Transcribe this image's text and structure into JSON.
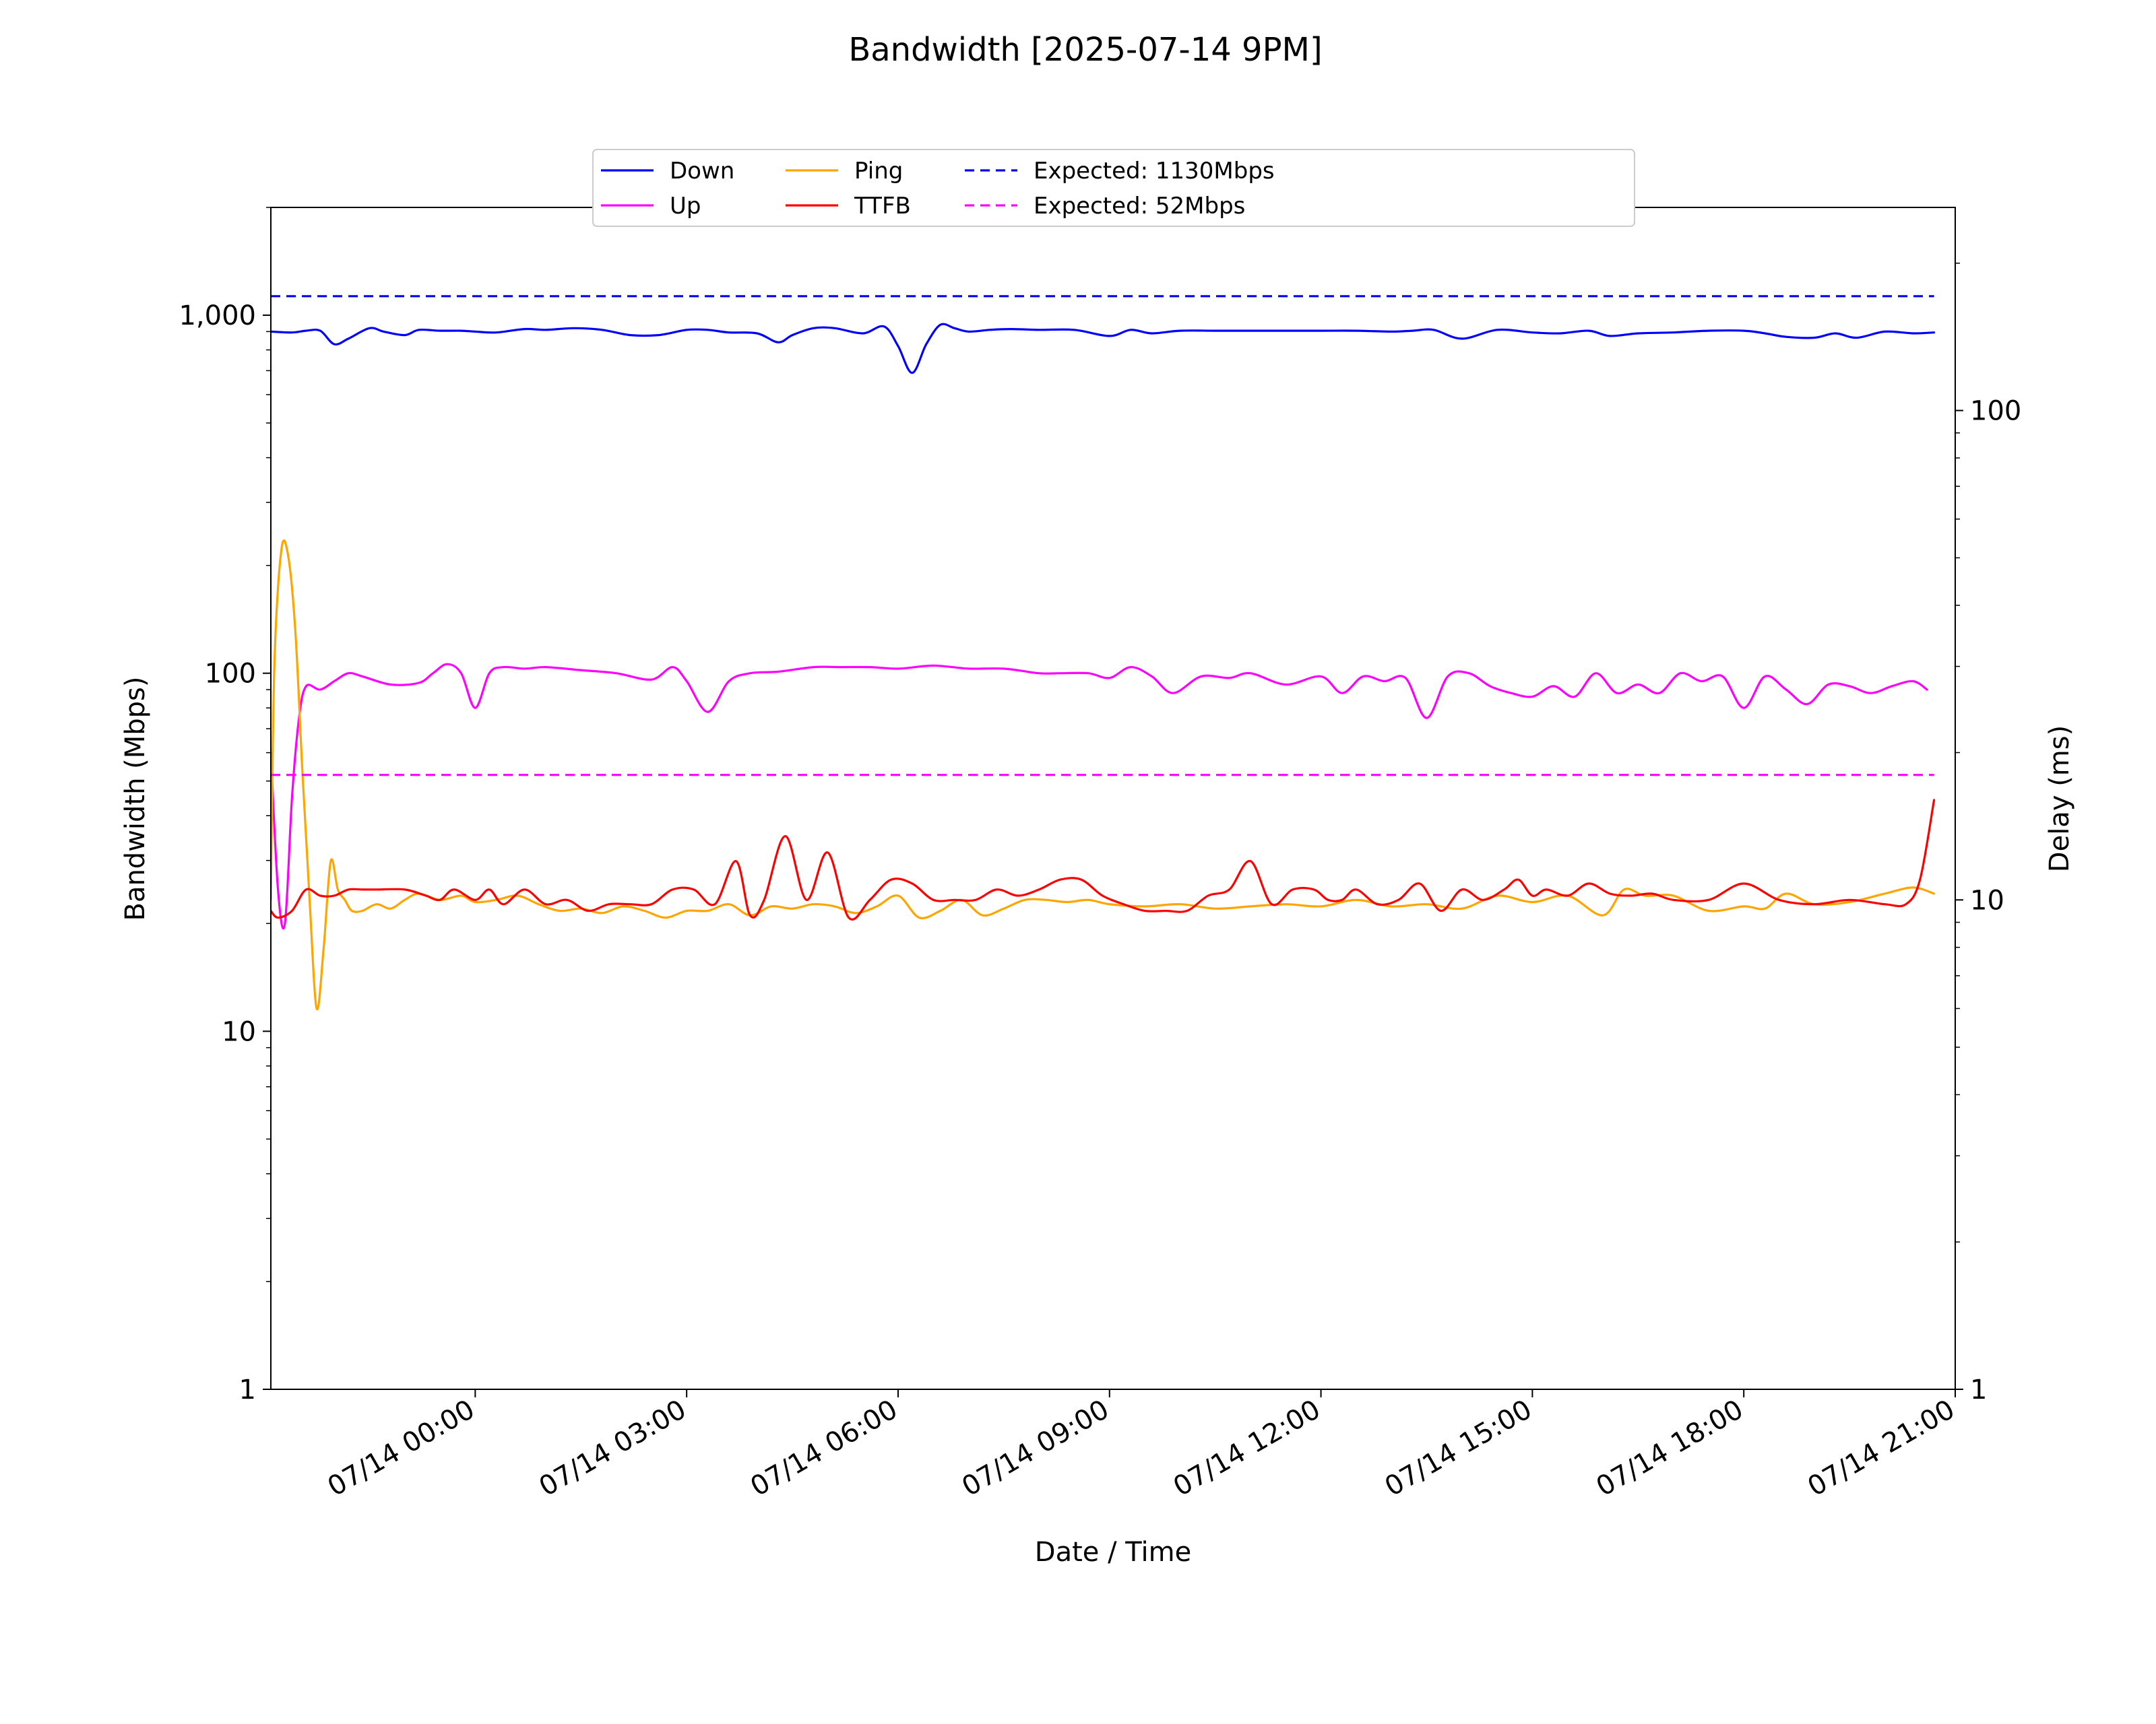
{
  "chart_data": {
    "type": "line",
    "title": "Bandwidth [2025-07-14 9PM]",
    "xlabel": "Date / Time",
    "ylabel": "Bandwidth (Mbps)",
    "y2label": "Delay (ms)",
    "x_unit": "hours relative to 07/14 00:00",
    "xlim": [
      -2.9,
      21.0
    ],
    "x_ticks": [
      {
        "x": 0,
        "label": "07/14 00:00"
      },
      {
        "x": 3,
        "label": "07/14 03:00"
      },
      {
        "x": 6,
        "label": "07/14 06:00"
      },
      {
        "x": 9,
        "label": "07/14 09:00"
      },
      {
        "x": 12,
        "label": "07/14 12:00"
      },
      {
        "x": 15,
        "label": "07/14 15:00"
      },
      {
        "x": 18,
        "label": "07/14 18:00"
      },
      {
        "x": 21,
        "label": "07/14 21:00"
      }
    ],
    "y_scale": "log",
    "ylim": [
      1,
      2000
    ],
    "y_ticks": [
      {
        "y": 1,
        "label": "1"
      },
      {
        "y": 10,
        "label": "10"
      },
      {
        "y": 100,
        "label": "100"
      },
      {
        "y": 1000,
        "label": "1,000"
      }
    ],
    "y2_scale": "log",
    "y2_ylim": [
      1,
      260
    ],
    "y2_ticks": [
      {
        "y": 1,
        "label": "1"
      },
      {
        "y": 10,
        "label": "10"
      },
      {
        "y": 100,
        "label": "100"
      }
    ],
    "grid": false,
    "legend": {
      "placement": "top-center",
      "columns": 4,
      "order": [
        "Down",
        "Up",
        "Ping",
        "TTFB",
        "Expected: 1130Mbps",
        "Expected: 52Mbps"
      ]
    },
    "series": [
      {
        "name": "Down",
        "axis": "left",
        "color": "#0000ff",
        "style": "solid",
        "x": [
          -2.9,
          -2.6,
          -2.4,
          -2.2,
          -2.0,
          -1.8,
          -1.5,
          -1.3,
          -1.0,
          -0.8,
          -0.5,
          -0.2,
          0.0,
          0.3,
          0.7,
          1.0,
          1.4,
          1.8,
          2.2,
          2.6,
          3.0,
          3.3,
          3.6,
          4.0,
          4.3,
          4.5,
          4.8,
          5.1,
          5.5,
          5.8,
          6.0,
          6.2,
          6.4,
          6.6,
          6.8,
          7.0,
          7.3,
          7.6,
          8.0,
          8.5,
          9.0,
          9.3,
          9.6,
          10.0,
          10.5,
          11.0,
          11.5,
          12.0,
          12.5,
          13.0,
          13.3,
          13.6,
          14.0,
          14.5,
          15.0,
          15.4,
          15.8,
          16.1,
          16.5,
          17.0,
          17.5,
          18.0,
          18.3,
          18.6,
          19.0,
          19.3,
          19.6,
          20.0,
          20.4,
          20.7
        ],
        "values": [
          900,
          895,
          905,
          905,
          830,
          860,
          920,
          900,
          880,
          910,
          905,
          905,
          900,
          895,
          915,
          910,
          920,
          910,
          880,
          880,
          910,
          910,
          895,
          890,
          840,
          880,
          920,
          920,
          890,
          930,
          820,
          690,
          830,
          940,
          920,
          900,
          910,
          915,
          910,
          910,
          875,
          910,
          890,
          905,
          905,
          905,
          905,
          905,
          905,
          900,
          905,
          910,
          860,
          910,
          895,
          890,
          905,
          875,
          890,
          895,
          905,
          905,
          890,
          870,
          865,
          890,
          865,
          900,
          890,
          895
        ]
      },
      {
        "name": "Up",
        "axis": "left",
        "color": "#ff00ff",
        "style": "solid",
        "x": [
          -2.9,
          -2.8,
          -2.7,
          -2.6,
          -2.5,
          -2.4,
          -2.2,
          -2.0,
          -1.8,
          -1.6,
          -1.2,
          -0.8,
          -0.6,
          -0.4,
          -0.2,
          0.0,
          0.2,
          0.4,
          0.7,
          1.0,
          1.5,
          2.0,
          2.5,
          2.8,
          3.0,
          3.3,
          3.6,
          3.9,
          4.3,
          4.8,
          5.2,
          5.6,
          6.0,
          6.5,
          7.0,
          7.5,
          8.0,
          8.3,
          8.7,
          9.0,
          9.3,
          9.6,
          9.9,
          10.3,
          10.7,
          11.0,
          11.5,
          12.0,
          12.3,
          12.6,
          12.9,
          13.2,
          13.5,
          13.8,
          14.1,
          14.4,
          14.7,
          15.0,
          15.3,
          15.6,
          15.9,
          16.2,
          16.5,
          16.8,
          17.1,
          17.4,
          17.7,
          18.0,
          18.3,
          18.6,
          18.9,
          19.2,
          19.5,
          19.8,
          20.1,
          20.4,
          20.6
        ],
        "values": [
          60,
          25,
          20,
          45,
          75,
          92,
          90,
          95,
          100,
          98,
          93,
          94,
          100,
          106,
          100,
          80,
          100,
          104,
          103,
          104,
          102,
          100,
          96,
          104,
          95,
          78,
          95,
          100,
          101,
          104,
          104,
          104,
          103,
          105,
          103,
          103,
          100,
          100,
          100,
          97,
          104,
          98,
          88,
          98,
          97,
          100,
          93,
          98,
          88,
          98,
          95,
          97,
          75,
          98,
          100,
          92,
          88,
          86,
          92,
          86,
          100,
          88,
          93,
          88,
          100,
          95,
          98,
          80,
          98,
          90,
          82,
          93,
          92,
          88,
          92,
          95,
          90
        ]
      },
      {
        "name": "Ping",
        "axis": "right",
        "color": "#ffa500",
        "style": "solid",
        "x": [
          -2.9,
          -2.85,
          -2.75,
          -2.65,
          -2.55,
          -2.45,
          -2.35,
          -2.25,
          -2.15,
          -2.05,
          -1.95,
          -1.85,
          -1.75,
          -1.6,
          -1.4,
          -1.2,
          -1.0,
          -0.8,
          -0.5,
          -0.2,
          0.0,
          0.3,
          0.6,
          0.9,
          1.2,
          1.5,
          1.8,
          2.1,
          2.4,
          2.7,
          3.0,
          3.3,
          3.6,
          3.9,
          4.2,
          4.5,
          4.8,
          5.1,
          5.4,
          5.7,
          6.0,
          6.3,
          6.6,
          6.9,
          7.2,
          7.5,
          7.8,
          8.1,
          8.4,
          8.7,
          9.0,
          9.5,
          10.0,
          10.5,
          11.0,
          11.5,
          12.0,
          12.5,
          13.0,
          13.5,
          14.0,
          14.5,
          15.0,
          15.5,
          16.0,
          16.3,
          16.6,
          17.0,
          17.5,
          18.0,
          18.3,
          18.6,
          19.0,
          19.5,
          20.0,
          20.4,
          20.7
        ],
        "values": [
          10,
          30,
          52,
          50,
          35,
          18,
          10,
          6,
          8,
          12,
          10.5,
          10,
          9.5,
          9.5,
          9.8,
          9.6,
          10,
          10.3,
          10,
          10.2,
          9.9,
          10,
          10.2,
          9.8,
          9.5,
          9.6,
          9.4,
          9.7,
          9.5,
          9.2,
          9.5,
          9.5,
          9.8,
          9.3,
          9.7,
          9.6,
          9.8,
          9.7,
          9.4,
          9.7,
          10.2,
          9.2,
          9.5,
          10,
          9.3,
          9.6,
          10,
          10,
          9.9,
          10,
          9.8,
          9.7,
          9.8,
          9.6,
          9.7,
          9.8,
          9.7,
          10,
          9.7,
          9.8,
          9.6,
          10.2,
          9.9,
          10.2,
          9.3,
          10.5,
          10.2,
          10.2,
          9.5,
          9.7,
          9.6,
          10.3,
          9.8,
          9.9,
          10.3,
          10.6,
          10.3
        ]
      },
      {
        "name": "TTFB",
        "axis": "right",
        "color": "#ff0000",
        "style": "solid",
        "x": [
          -2.9,
          -2.8,
          -2.6,
          -2.4,
          -2.2,
          -2.0,
          -1.8,
          -1.6,
          -1.4,
          -1.0,
          -0.7,
          -0.5,
          -0.3,
          0.0,
          0.2,
          0.4,
          0.7,
          1.0,
          1.3,
          1.6,
          1.9,
          2.2,
          2.5,
          2.8,
          3.1,
          3.4,
          3.7,
          3.9,
          4.1,
          4.4,
          4.7,
          5.0,
          5.3,
          5.6,
          5.9,
          6.2,
          6.5,
          6.8,
          7.1,
          7.4,
          7.7,
          8.0,
          8.3,
          8.6,
          8.9,
          9.2,
          9.5,
          9.8,
          10.1,
          10.4,
          10.7,
          11.0,
          11.3,
          11.6,
          11.9,
          12.1,
          12.3,
          12.5,
          12.8,
          13.1,
          13.4,
          13.7,
          14.0,
          14.3,
          14.6,
          14.8,
          15.0,
          15.2,
          15.5,
          15.8,
          16.1,
          16.4,
          16.7,
          17.0,
          17.5,
          18.0,
          18.5,
          19.0,
          19.5,
          20.0,
          20.3,
          20.5,
          20.7
        ],
        "values": [
          9.5,
          9.2,
          9.5,
          10.5,
          10.2,
          10.2,
          10.5,
          10.5,
          10.5,
          10.5,
          10.2,
          10,
          10.5,
          10,
          10.5,
          9.8,
          10.5,
          9.8,
          10,
          9.5,
          9.8,
          9.8,
          9.8,
          10.5,
          10.5,
          9.8,
          12,
          9.3,
          10,
          13.5,
          10,
          12.5,
          9.2,
          10,
          11,
          10.8,
          10,
          10,
          10,
          10.5,
          10.2,
          10.5,
          11,
          11,
          10.2,
          9.8,
          9.5,
          9.5,
          9.5,
          10.2,
          10.5,
          12,
          9.8,
          10.5,
          10.5,
          10,
          10,
          10.5,
          9.8,
          10,
          10.8,
          9.5,
          10.5,
          10,
          10.5,
          11,
          10.2,
          10.5,
          10.2,
          10.8,
          10.3,
          10.2,
          10.3,
          10,
          10,
          10.8,
          10,
          9.8,
          10,
          9.8,
          9.8,
          11,
          16
        ]
      },
      {
        "name": "Expected: 1130Mbps",
        "axis": "left",
        "color": "#0000ff",
        "style": "dashed",
        "x": [
          -2.9,
          20.7
        ],
        "values": [
          1130,
          1130
        ]
      },
      {
        "name": "Expected: 52Mbps",
        "axis": "left",
        "color": "#ff00ff",
        "style": "dashed",
        "x": [
          -2.9,
          20.7
        ],
        "values": [
          52,
          52
        ]
      }
    ]
  }
}
